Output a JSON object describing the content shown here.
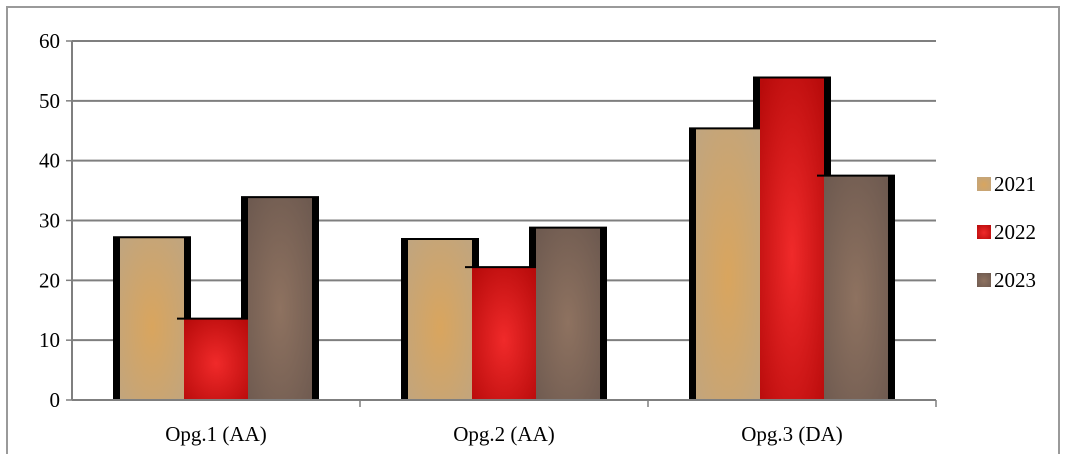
{
  "chart_data": {
    "type": "bar",
    "title": "",
    "xlabel": "",
    "ylabel": "",
    "categories": [
      "Opg.1 (AA)",
      "Opg.2 (AA)",
      "Opg.3 (DA)"
    ],
    "series": [
      {
        "name": "2021",
        "values": [
          27.2,
          26.9,
          45.4
        ],
        "color": "#C8A46A"
      },
      {
        "name": "2022",
        "values": [
          13.6,
          22.2,
          53.9
        ],
        "color": "#D51B1B"
      },
      {
        "name": "2023",
        "values": [
          33.9,
          28.8,
          37.5
        ],
        "color": "#7B6154"
      }
    ],
    "ylim": [
      0,
      60
    ],
    "yticks": [
      0,
      10,
      20,
      30,
      40,
      50,
      60
    ],
    "grid": true,
    "legend_position": "right"
  }
}
